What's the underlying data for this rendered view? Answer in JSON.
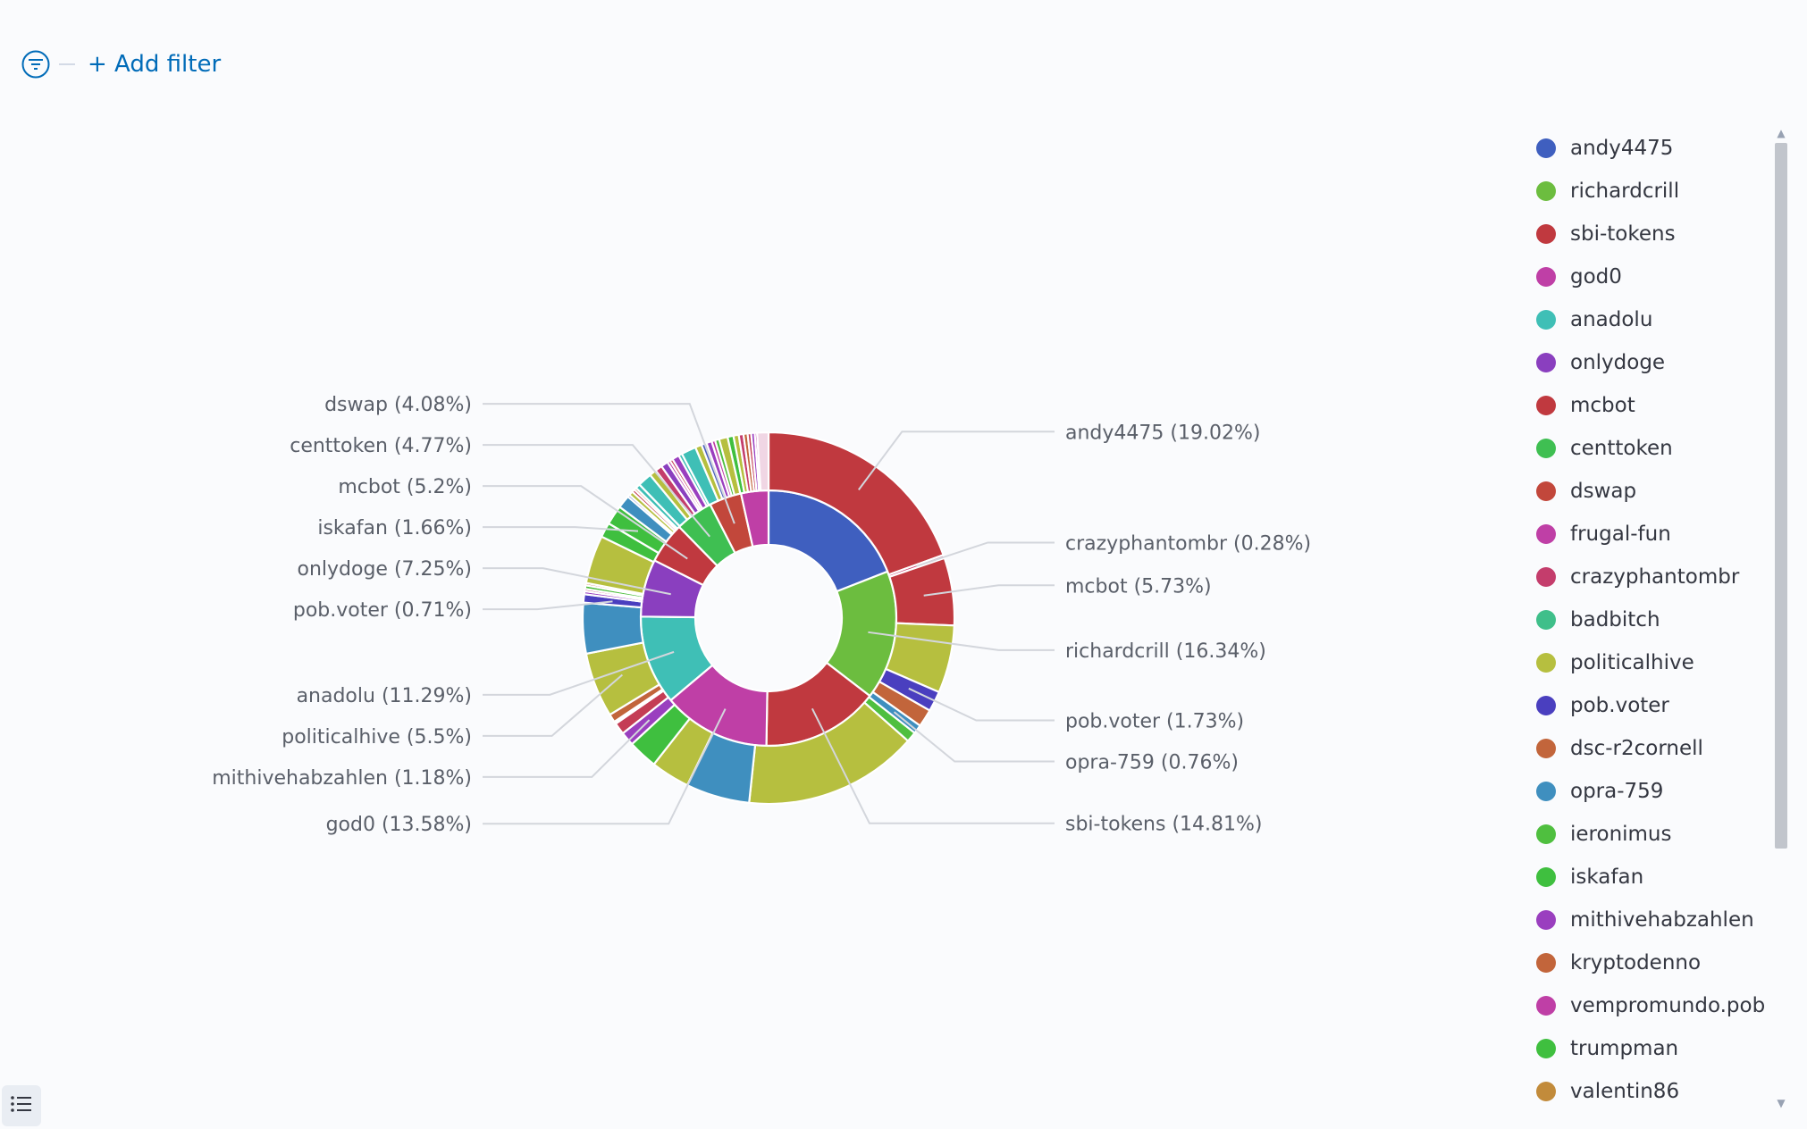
{
  "filter_bar": {
    "add_filter_label": "+ Add filter",
    "filter_icon": "filter-icon"
  },
  "list_toggle_icon": "list-icon",
  "chart_data": {
    "type": "pie",
    "donut": true,
    "legend_position": "right",
    "series": [
      {
        "name": "",
        "slices": [
          {
            "label": "andy4475",
            "value": 19.02,
            "color": "#3f5fbf"
          },
          {
            "label": "richardcrill",
            "value": 16.34,
            "color": "#6cbd3f"
          },
          {
            "label": "sbi-tokens",
            "value": 14.81,
            "color": "#c0393f"
          },
          {
            "label": "god0",
            "value": 13.58,
            "color": "#bf3fa6"
          },
          {
            "label": "anadolu",
            "value": 11.29,
            "color": "#3fbfb6"
          },
          {
            "label": "onlydoge",
            "value": 7.25,
            "color": "#8a3fbf"
          },
          {
            "label": "mcbot",
            "value": 5.2,
            "color": "#c0393f"
          },
          {
            "label": "centtoken",
            "value": 4.77,
            "color": "#3fbf52"
          },
          {
            "label": "dswap",
            "value": 4.08,
            "color": "#c2473b"
          },
          {
            "label": "frugal-fun",
            "value": 3.46,
            "color": "#bf3fa6"
          }
        ]
      },
      {
        "name": "",
        "slices": [
          {
            "label": "andy4475",
            "value": 19.02,
            "color": "#c0393f",
            "parent": 0
          },
          {
            "label": "crazyphantombr",
            "value": 0.28,
            "color": "#c43d6c",
            "parent": 0
          },
          {
            "label": "mcbot",
            "value": 5.73,
            "color": "#c0393f",
            "parent": 1
          },
          {
            "label": "",
            "value": 5.75,
            "color": "#b6bf3f",
            "parent": 1
          },
          {
            "label": "pob.voter",
            "value": 1.73,
            "color": "#4a3fbf",
            "parent": 1
          },
          {
            "label": "",
            "value": 1.5,
            "color": "#c2653b",
            "parent": 1
          },
          {
            "label": "opra-759",
            "value": 0.76,
            "color": "#3f8fbf",
            "parent": 1
          },
          {
            "label": "",
            "value": 0.87,
            "color": "#4fbf3f",
            "parent": 1
          },
          {
            "label": "sbi-tokens",
            "value": 14.81,
            "color": "#b6bf3f",
            "parent": 2
          },
          {
            "label": "",
            "value": 5.4,
            "color": "#3f8fbf",
            "parent": 3
          },
          {
            "label": "",
            "value": 3.3,
            "color": "#b6bf3f",
            "parent": 3
          },
          {
            "label": "",
            "value": 2.5,
            "color": "#3fbf3f",
            "parent": 3
          },
          {
            "label": "mithivehabzahlen",
            "value": 1.18,
            "color": "#9a3fbf",
            "parent": 3
          },
          {
            "label": "",
            "value": 1.0,
            "color": "#c43d55",
            "parent": 3
          },
          {
            "label": "",
            "value": 0.2,
            "color": "#ffffff",
            "parent": 3
          },
          {
            "label": "",
            "value": 0.7,
            "color": "#c2653b",
            "parent": 3
          },
          {
            "label": "politicalhive",
            "value": 5.5,
            "color": "#b6bf3f",
            "parent": 4
          },
          {
            "label": "",
            "value": 4.3,
            "color": "#3f8fbf",
            "parent": 4
          },
          {
            "label": "pob.voter",
            "value": 0.71,
            "color": "#4a3fbf",
            "parent": 4
          },
          {
            "label": "",
            "value": 0.25,
            "color": "#9a3fbf",
            "parent": 4
          },
          {
            "label": "",
            "value": 0.2,
            "color": "#c43d6c",
            "parent": 4
          },
          {
            "label": "",
            "value": 0.3,
            "color": "#4fbf3f",
            "parent": 4
          },
          {
            "label": "",
            "value": 0.2,
            "color": "#c2653b",
            "parent": 5
          },
          {
            "label": "",
            "value": 4.1,
            "color": "#b6bf3f",
            "parent": 5
          },
          {
            "label": "",
            "value": 1.25,
            "color": "#3fbf3f",
            "parent": 5
          },
          {
            "label": "iskafan",
            "value": 1.66,
            "color": "#3fbf3f",
            "parent": 6
          },
          {
            "label": "",
            "value": 1.1,
            "color": "#3f8fbf",
            "parent": 6
          },
          {
            "label": "",
            "value": 0.2,
            "color": "#4a5fbf",
            "parent": 6
          },
          {
            "label": "",
            "value": 0.35,
            "color": "#b6bf3f",
            "parent": 6
          },
          {
            "label": "",
            "value": 0.25,
            "color": "#c43d55",
            "parent": 6
          },
          {
            "label": "",
            "value": 0.2,
            "color": "#c2653b",
            "parent": 6
          },
          {
            "label": "",
            "value": 0.4,
            "color": "#3fbfb6",
            "parent": 7
          },
          {
            "label": "",
            "value": 1.2,
            "color": "#3fbfb6",
            "parent": 7
          },
          {
            "label": "",
            "value": 0.6,
            "color": "#b6bf3f",
            "parent": 7
          },
          {
            "label": "",
            "value": 0.6,
            "color": "#c43d6c",
            "parent": 7
          },
          {
            "label": "",
            "value": 0.6,
            "color": "#8a3fbf",
            "parent": 7
          },
          {
            "label": "",
            "value": 0.25,
            "color": "#bf3fa6",
            "parent": 7
          },
          {
            "label": "",
            "value": 0.25,
            "color": "#c43d55",
            "parent": 7
          },
          {
            "label": "",
            "value": 0.6,
            "color": "#9a3fbf",
            "parent": 7
          },
          {
            "label": "",
            "value": 0.3,
            "color": "#3fbfb6",
            "parent": 7
          },
          {
            "label": "",
            "value": 1.25,
            "color": "#3fbfb6",
            "parent": 8
          },
          {
            "label": "dswap",
            "value": 0.55,
            "color": "#b6bf3f",
            "parent": 8
          },
          {
            "label": "",
            "value": 0.45,
            "color": "#4a5fbf",
            "parent": 8
          },
          {
            "label": "",
            "value": 0.45,
            "color": "#9a3fbf",
            "parent": 8
          },
          {
            "label": "",
            "value": 0.3,
            "color": "#bf3fa6",
            "parent": 8
          },
          {
            "label": "",
            "value": 0.35,
            "color": "#4fbf3f",
            "parent": 8
          },
          {
            "label": "",
            "value": 0.73,
            "color": "#b6bf3f",
            "parent": 8
          },
          {
            "label": "",
            "value": 0.5,
            "color": "#3fbf3f",
            "parent": 9
          },
          {
            "label": "",
            "value": 0.45,
            "color": "#b6bf3f",
            "parent": 9
          },
          {
            "label": "",
            "value": 0.4,
            "color": "#c43d6c",
            "parent": 9
          },
          {
            "label": "",
            "value": 0.35,
            "color": "#c2653b",
            "parent": 9
          },
          {
            "label": "",
            "value": 0.3,
            "color": "#c43d55",
            "parent": 9
          },
          {
            "label": "",
            "value": 0.3,
            "color": "#9a3fbf",
            "parent": 9
          },
          {
            "label": "",
            "value": 0.2,
            "color": "#bf3fa6",
            "parent": 9
          },
          {
            "label": "",
            "value": 0.96,
            "color": "#f0d6e4",
            "parent": 9
          }
        ]
      }
    ],
    "callouts": [
      {
        "text": "andy4475 (19.02%)",
        "ring": 1,
        "slice": 0,
        "side": "right"
      },
      {
        "text": "crazyphantombr (0.28%)",
        "ring": 1,
        "slice": 1,
        "side": "right"
      },
      {
        "text": "mcbot (5.73%)",
        "ring": 1,
        "slice": 2,
        "side": "right"
      },
      {
        "text": "richardcrill (16.34%)",
        "ring": 0,
        "slice": 1,
        "side": "right"
      },
      {
        "text": "pob.voter (1.73%)",
        "ring": 1,
        "slice": 4,
        "side": "right"
      },
      {
        "text": "opra-759 (0.76%)",
        "ring": 1,
        "slice": 6,
        "side": "right"
      },
      {
        "text": "sbi-tokens (14.81%)",
        "ring": 0,
        "slice": 2,
        "side": "right"
      },
      {
        "text": "god0 (13.58%)",
        "ring": 0,
        "slice": 3,
        "side": "left"
      },
      {
        "text": "mithivehabzahlen (1.18%)",
        "ring": 1,
        "slice": 12,
        "side": "left"
      },
      {
        "text": "politicalhive (5.5%)",
        "ring": 1,
        "slice": 16,
        "side": "left"
      },
      {
        "text": "anadolu (11.29%)",
        "ring": 0,
        "slice": 4,
        "side": "left"
      },
      {
        "text": "pob.voter (0.71%)",
        "ring": 1,
        "slice": 18,
        "side": "left"
      },
      {
        "text": "onlydoge (7.25%)",
        "ring": 0,
        "slice": 5,
        "side": "left"
      },
      {
        "text": "iskafan (1.66%)",
        "ring": 1,
        "slice": 25,
        "side": "left"
      },
      {
        "text": "mcbot (5.2%)",
        "ring": 0,
        "slice": 6,
        "side": "left"
      },
      {
        "text": "centtoken (4.77%)",
        "ring": 0,
        "slice": 7,
        "side": "left"
      },
      {
        "text": "dswap (4.08%)",
        "ring": 0,
        "slice": 8,
        "side": "left"
      }
    ],
    "legend": [
      {
        "label": "andy4475",
        "color": "#3f5fbf"
      },
      {
        "label": "richardcrill",
        "color": "#6cbd3f"
      },
      {
        "label": "sbi-tokens",
        "color": "#c0393f"
      },
      {
        "label": "god0",
        "color": "#bf3fa6"
      },
      {
        "label": "anadolu",
        "color": "#3fbfb6"
      },
      {
        "label": "onlydoge",
        "color": "#8a3fbf"
      },
      {
        "label": "mcbot",
        "color": "#c0393f"
      },
      {
        "label": "centtoken",
        "color": "#3fbf52"
      },
      {
        "label": "dswap",
        "color": "#c2473b"
      },
      {
        "label": "frugal-fun",
        "color": "#bf3fa6"
      },
      {
        "label": "crazyphantombr",
        "color": "#c43d6c"
      },
      {
        "label": "badbitch",
        "color": "#3fbf8a"
      },
      {
        "label": "politicalhive",
        "color": "#b6bf3f"
      },
      {
        "label": "pob.voter",
        "color": "#4a3fbf"
      },
      {
        "label": "dsc-r2cornell",
        "color": "#c2653b"
      },
      {
        "label": "opra-759",
        "color": "#3f8fbf"
      },
      {
        "label": "ieronimus",
        "color": "#4fbf3f"
      },
      {
        "label": "iskafan",
        "color": "#3fbf3f"
      },
      {
        "label": "mithivehabzahlen",
        "color": "#9a3fbf"
      },
      {
        "label": "kryptodenno",
        "color": "#c2653b"
      },
      {
        "label": "vempromundo.pob",
        "color": "#bf3fa6"
      },
      {
        "label": "trumpman",
        "color": "#3fbf3f"
      },
      {
        "label": "valentin86",
        "color": "#c28b3b"
      }
    ]
  }
}
